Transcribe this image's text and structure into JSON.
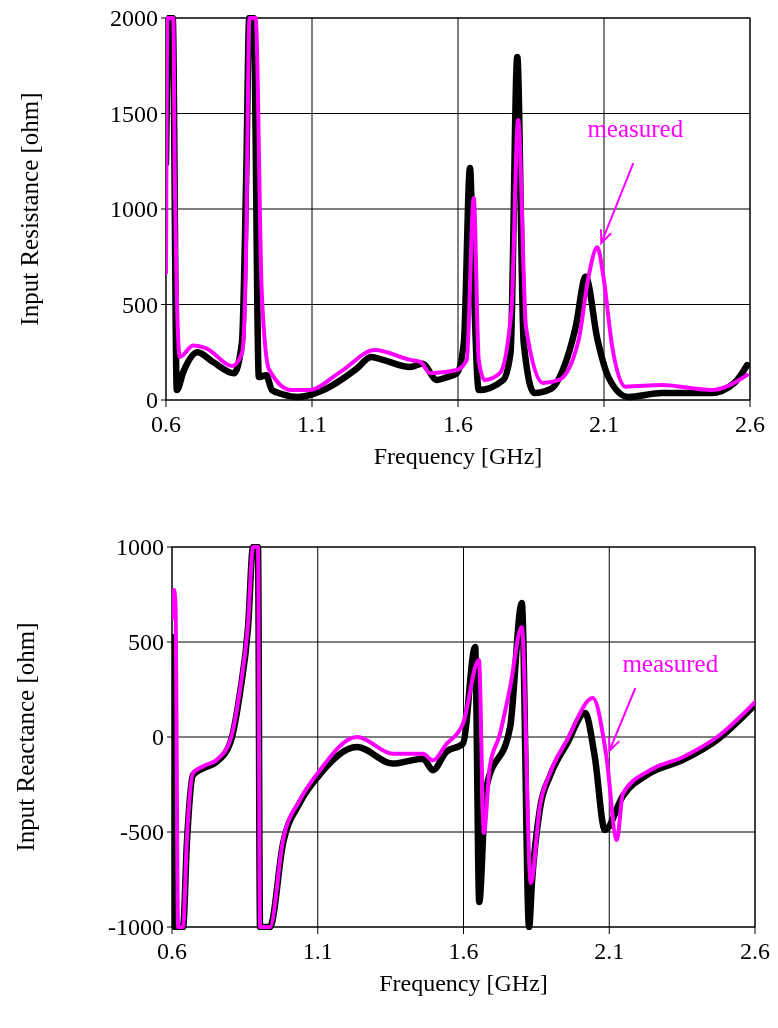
{
  "chart_data": [
    {
      "type": "line",
      "xlabel": "Frequency [GHz]",
      "ylabel": "Input Resistance [ohm]",
      "xlim": [
        0.6,
        2.6
      ],
      "xticks": [
        0.6,
        1.1,
        1.6,
        2.1,
        2.6
      ],
      "ylim": [
        0,
        2000
      ],
      "yticks": [
        0,
        500,
        1000,
        1500,
        2000
      ],
      "grid": true,
      "line_style": "solid",
      "marker": "none",
      "series": [
        {
          "color": "#000000",
          "x": [
            0.6,
            0.603,
            0.61,
            0.623,
            0.637,
            0.66,
            0.708,
            0.76,
            0.833,
            0.86,
            0.875,
            0.885,
            0.9,
            0.918,
            0.943,
            0.963,
            1.0,
            1.053,
            1.15,
            1.25,
            1.303,
            1.343,
            1.437,
            1.478,
            1.528,
            1.563,
            1.596,
            1.62,
            1.641,
            1.652,
            1.671,
            1.755,
            1.78,
            1.803,
            1.825,
            1.861,
            1.92,
            1.959,
            2.003,
            2.037,
            2.078,
            2.115,
            2.183,
            2.298,
            2.468,
            2.546,
            2.59
          ],
          "values": [
            1240,
            1600,
            2000,
            2000,
            52,
            150,
            250,
            200,
            140,
            300,
            1200,
            2000,
            2000,
            120,
            130,
            52,
            30,
            16,
            60,
            160,
            225,
            210,
            173,
            190,
            105,
            120,
            140,
            300,
            1215,
            700,
            52,
            105,
            250,
            1796,
            300,
            37,
            60,
            157,
            382,
            645,
            314,
            120,
            16,
            37,
            37,
            89,
            183
          ]
        },
        {
          "color": "#ff00ff",
          "x": [
            0.6,
            0.605,
            0.615,
            0.625,
            0.63,
            0.647,
            0.693,
            0.738,
            0.827,
            0.861,
            0.873,
            0.886,
            0.899,
            0.907,
            0.928,
            0.953,
            1.03,
            1.088,
            1.2,
            1.315,
            1.437,
            1.471,
            1.505,
            1.596,
            1.63,
            1.654,
            1.671,
            1.691,
            1.743,
            1.783,
            1.806,
            1.833,
            1.891,
            1.946,
            2.013,
            2.047,
            2.077,
            2.098,
            2.128,
            2.173,
            2.298,
            2.468,
            2.59
          ],
          "values": [
            665,
            2000,
            2000,
            2000,
            1200,
            225,
            285,
            270,
            178,
            250,
            665,
            2000,
            2000,
            2000,
            560,
            160,
            52,
            52,
            150,
            262,
            210,
            200,
            140,
            157,
            210,
            1058,
            210,
            105,
            140,
            470,
            1466,
            380,
            89,
            105,
            314,
            645,
            800,
            645,
            280,
            70,
            78,
            52,
            130
          ]
        }
      ],
      "annotations": [
        {
          "text": "measured",
          "x": 2.077,
          "y": 800
        }
      ]
    },
    {
      "type": "line",
      "xlabel": "Frequency [GHz]",
      "ylabel": "Input Reactance [ohm]",
      "xlim": [
        0.6,
        2.6
      ],
      "xticks": [
        0.6,
        1.1,
        1.6,
        2.1,
        2.6
      ],
      "ylim": [
        -1000,
        1000
      ],
      "yticks": [
        -1000,
        -500,
        0,
        500,
        1000
      ],
      "grid": true,
      "line_style": "solid",
      "marker": "none",
      "series": [
        {
          "color": "#000000",
          "x": [
            0.6,
            0.605,
            0.61,
            0.638,
            0.651,
            0.672,
            0.706,
            0.754,
            0.8,
            0.833,
            0.861,
            0.878,
            0.895,
            0.902,
            0.936,
            0.981,
            1.039,
            1.1,
            1.235,
            1.358,
            1.461,
            1.495,
            1.54,
            1.598,
            1.64,
            1.654,
            1.676,
            1.76,
            1.8,
            1.825,
            1.835,
            1.862,
            1.897,
            1.955,
            2.017,
            2.05,
            2.085,
            2.147,
            2.24,
            2.353,
            2.47,
            2.6
          ],
          "values": [
            526,
            0,
            -1000,
            -1000,
            -560,
            -200,
            -165,
            -130,
            -30,
            230,
            580,
            1000,
            1000,
            -1000,
            -1000,
            -560,
            -345,
            -210,
            -53,
            -140,
            -114,
            -175,
            -80,
            -35,
            474,
            -868,
            -283,
            53,
            705,
            -1000,
            -760,
            -380,
            -205,
            -35,
            126,
            -100,
            -490,
            -310,
            -190,
            -120,
            -15,
            170
          ]
        },
        {
          "color": "#ff00ff",
          "x": [
            0.6,
            0.607,
            0.612,
            0.621,
            0.638,
            0.651,
            0.672,
            0.706,
            0.754,
            0.8,
            0.833,
            0.861,
            0.878,
            0.895,
            0.902,
            0.936,
            0.981,
            1.039,
            1.1,
            1.235,
            1.358,
            1.461,
            1.495,
            1.54,
            1.598,
            1.653,
            1.67,
            1.69,
            1.725,
            1.76,
            1.8,
            1.831,
            1.862,
            1.897,
            1.955,
            2.044,
            2.09,
            2.126,
            2.147,
            2.24,
            2.353,
            2.47,
            2.6
          ],
          "values": [
            626,
            774,
            700,
            -1000,
            -1000,
            -542,
            -190,
            -155,
            -120,
            -16,
            247,
            598,
            1000,
            1000,
            -1000,
            -1000,
            -542,
            -331,
            -190,
            0,
            -88,
            -88,
            -123,
            -40,
            70,
            405,
            -505,
            -158,
            16,
            263,
            579,
            -768,
            -365,
            -190,
            -16,
            205,
            -100,
            -542,
            -297,
            -175,
            -105,
            0,
            184
          ]
        }
      ],
      "annotations": [
        {
          "text": "measured",
          "x": 2.09,
          "y": -100
        }
      ]
    }
  ]
}
